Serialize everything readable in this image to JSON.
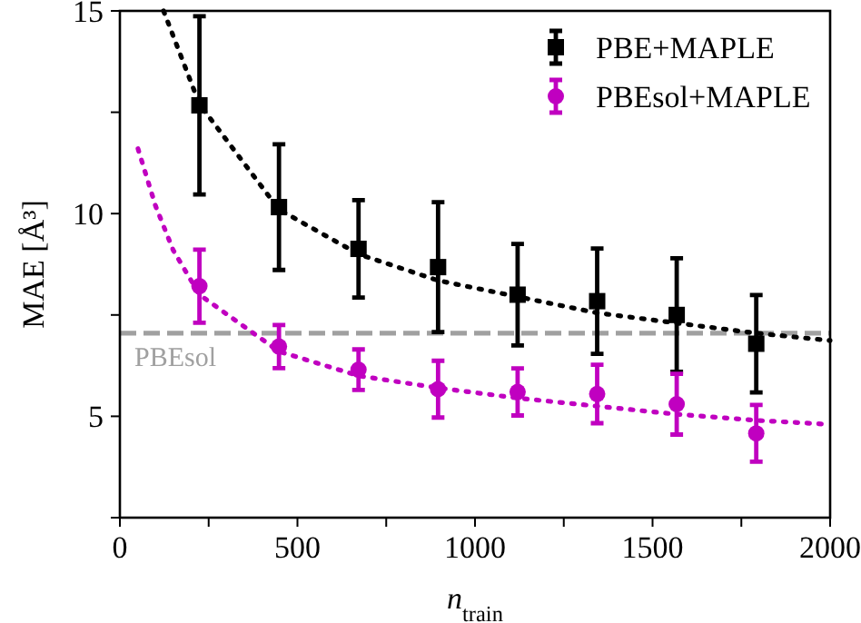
{
  "chart_data": {
    "type": "scatter",
    "xlabel": "n$_{train}$",
    "ylabel": "MAE [Å³]",
    "xlim": [
      0,
      2000
    ],
    "xticks": [
      0,
      {
        "value": 250,
        "label": null
      },
      500,
      {
        "value": 750,
        "label": null
      },
      1000,
      {
        "value": 1250,
        "label": null
      },
      1500,
      {
        "value": 1750,
        "label": null
      },
      2000
    ],
    "ylim": [
      2.5,
      15
    ],
    "yticks": [
      {
        "value": 2.5,
        "label": null
      },
      5,
      {
        "value": 7.5,
        "label": null
      },
      10,
      {
        "value": 12.5,
        "label": null
      },
      15
    ],
    "grid": false,
    "legend": "top right",
    "x": [
      224,
      448,
      672,
      896,
      1120,
      1344,
      1568,
      1792
    ],
    "series": [
      {
        "type": "line",
        "color": "#000000",
        "line_style": "dotted",
        "marker": "none",
        "x": [
          123,
          224,
          448,
          672,
          896,
          1120,
          1344,
          1568,
          1792,
          2000
        ],
        "values": [
          15,
          12.7,
          10.1,
          9.0,
          8.35,
          7.95,
          7.55,
          7.3,
          7.05,
          6.87
        ]
      },
      {
        "type": "line",
        "color": "#c000c0",
        "line_style": "dotted",
        "marker": "none",
        "x": [
          51,
          100,
          150,
          224,
          448,
          672,
          896,
          1120,
          1344,
          1568,
          1792,
          2000
        ],
        "values": [
          11.6,
          10.2,
          9.1,
          8.0,
          6.6,
          6.0,
          5.7,
          5.45,
          5.25,
          5.05,
          4.9,
          4.8
        ]
      },
      {
        "name": "PBE+MAPLE",
        "color": "#000000",
        "marker": "square",
        "values": [
          12.67,
          10.16,
          9.13,
          8.68,
          8.0,
          7.84,
          7.5,
          6.79
        ],
        "errors": [
          2.2,
          1.55,
          1.2,
          1.6,
          1.25,
          1.3,
          1.4,
          1.2
        ]
      },
      {
        "name": "PBEsol+MAPLE",
        "color": "#c000c0",
        "marker": "circle",
        "values": [
          8.21,
          6.72,
          6.15,
          5.67,
          5.6,
          5.55,
          5.3,
          4.58
        ],
        "errors": [
          0.9,
          0.53,
          0.5,
          0.7,
          0.58,
          0.72,
          0.75,
          0.7
        ]
      }
    ],
    "ref_lines": [
      {
        "axis": "y",
        "value": 7.05,
        "label": "PBEsol",
        "color": "#a0a0a0",
        "line_style": "dashed"
      }
    ]
  }
}
